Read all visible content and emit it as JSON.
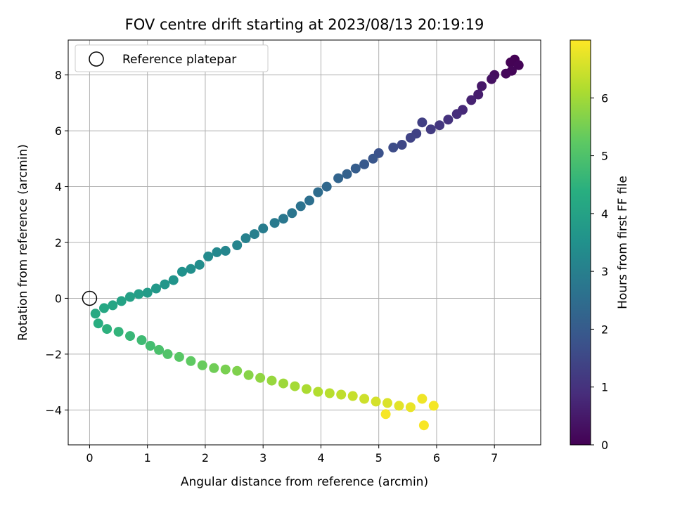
{
  "chart_data": {
    "type": "scatter",
    "title": "FOV centre drift starting at 2023/08/13 20:19:19",
    "xlabel": "Angular distance from reference (arcmin)",
    "ylabel": "Rotation from reference (arcmin)",
    "xlim": [
      -0.37,
      7.8
    ],
    "ylim": [
      -5.25,
      9.25
    ],
    "xticks": [
      0,
      1,
      2,
      3,
      4,
      5,
      6,
      7
    ],
    "yticks": [
      -4,
      -2,
      0,
      2,
      4,
      6,
      8
    ],
    "grid": true,
    "legend": {
      "placement": "top-left",
      "entries": [
        "Reference platepar"
      ]
    },
    "reference_point": {
      "x": 0,
      "y": 0
    },
    "colorbar": {
      "label": "Hours from first FF file",
      "range": [
        0,
        7.0
      ],
      "ticks": [
        0,
        1,
        2,
        3,
        4,
        5,
        6
      ],
      "colormap": "viridis"
    },
    "series": [
      {
        "segment": "upper branch (rotation increasing with distance)",
        "points": [
          [
            7.35,
            8.55,
            0.0
          ],
          [
            7.28,
            8.45,
            0.03
          ],
          [
            7.42,
            8.35,
            0.06
          ],
          [
            7.3,
            8.15,
            0.09
          ],
          [
            7.2,
            8.05,
            0.12
          ],
          [
            7.0,
            8.0,
            0.25
          ],
          [
            6.95,
            7.85,
            0.32
          ],
          [
            6.78,
            7.6,
            0.45
          ],
          [
            6.72,
            7.3,
            0.55
          ],
          [
            6.6,
            7.1,
            0.65
          ],
          [
            6.45,
            6.75,
            0.8
          ],
          [
            6.35,
            6.6,
            0.9
          ],
          [
            6.2,
            6.4,
            1.0
          ],
          [
            6.05,
            6.2,
            1.1
          ],
          [
            5.9,
            6.05,
            1.2
          ],
          [
            5.75,
            6.3,
            1.3
          ],
          [
            5.65,
            5.9,
            1.35
          ],
          [
            5.55,
            5.75,
            1.4
          ],
          [
            5.4,
            5.5,
            1.5
          ],
          [
            5.25,
            5.4,
            1.6
          ],
          [
            5.0,
            5.2,
            1.75
          ],
          [
            4.9,
            5.0,
            1.85
          ],
          [
            4.75,
            4.8,
            1.95
          ],
          [
            4.6,
            4.65,
            2.05
          ],
          [
            4.45,
            4.45,
            2.15
          ],
          [
            4.3,
            4.3,
            2.25
          ],
          [
            4.1,
            4.0,
            2.35
          ],
          [
            3.95,
            3.8,
            2.45
          ],
          [
            3.8,
            3.5,
            2.55
          ],
          [
            3.65,
            3.3,
            2.62
          ],
          [
            3.5,
            3.05,
            2.7
          ],
          [
            3.35,
            2.85,
            2.78
          ],
          [
            3.2,
            2.7,
            2.85
          ],
          [
            3.0,
            2.5,
            2.92
          ],
          [
            2.85,
            2.3,
            3.0
          ],
          [
            2.7,
            2.15,
            3.05
          ],
          [
            2.55,
            1.9,
            3.12
          ],
          [
            2.35,
            1.7,
            3.2
          ],
          [
            2.2,
            1.65,
            3.25
          ],
          [
            2.05,
            1.5,
            3.3
          ],
          [
            1.9,
            1.2,
            3.38
          ],
          [
            1.75,
            1.05,
            3.45
          ],
          [
            1.6,
            0.95,
            3.5
          ],
          [
            1.45,
            0.65,
            3.58
          ],
          [
            1.3,
            0.5,
            3.65
          ],
          [
            1.15,
            0.35,
            3.72
          ],
          [
            1.0,
            0.2,
            3.8
          ],
          [
            0.85,
            0.15,
            3.88
          ],
          [
            0.7,
            0.05,
            3.95
          ],
          [
            0.55,
            -0.1,
            4.02
          ],
          [
            0.4,
            -0.25,
            4.1
          ],
          [
            0.25,
            -0.35,
            4.15
          ],
          [
            0.1,
            -0.55,
            4.22
          ]
        ]
      },
      {
        "segment": "lower branch (rotation decreasing with distance)",
        "points": [
          [
            0.15,
            -0.9,
            4.35
          ],
          [
            0.3,
            -1.1,
            4.45
          ],
          [
            0.5,
            -1.2,
            4.55
          ],
          [
            0.7,
            -1.35,
            4.65
          ],
          [
            0.9,
            -1.5,
            4.75
          ],
          [
            1.05,
            -1.7,
            4.85
          ],
          [
            1.2,
            -1.85,
            4.95
          ],
          [
            1.35,
            -2.0,
            5.05
          ],
          [
            1.55,
            -2.1,
            5.15
          ],
          [
            1.75,
            -2.25,
            5.25
          ],
          [
            1.95,
            -2.4,
            5.35
          ],
          [
            2.15,
            -2.5,
            5.45
          ],
          [
            2.35,
            -2.55,
            5.55
          ],
          [
            2.55,
            -2.6,
            5.62
          ],
          [
            2.75,
            -2.75,
            5.7
          ],
          [
            2.95,
            -2.85,
            5.8
          ],
          [
            3.15,
            -2.95,
            5.88
          ],
          [
            3.35,
            -3.05,
            5.95
          ],
          [
            3.55,
            -3.15,
            6.02
          ],
          [
            3.75,
            -3.25,
            6.1
          ],
          [
            3.95,
            -3.35,
            6.18
          ],
          [
            4.15,
            -3.4,
            6.25
          ],
          [
            4.35,
            -3.45,
            6.32
          ],
          [
            4.55,
            -3.5,
            6.4
          ],
          [
            4.75,
            -3.6,
            6.48
          ],
          [
            4.95,
            -3.7,
            6.55
          ],
          [
            5.15,
            -3.75,
            6.62
          ],
          [
            5.35,
            -3.85,
            6.7
          ],
          [
            5.55,
            -3.9,
            6.78
          ],
          [
            5.75,
            -3.6,
            6.85
          ],
          [
            5.95,
            -3.85,
            6.9
          ],
          [
            5.78,
            -4.55,
            6.95
          ],
          [
            5.12,
            -4.15,
            6.92
          ]
        ]
      }
    ]
  }
}
